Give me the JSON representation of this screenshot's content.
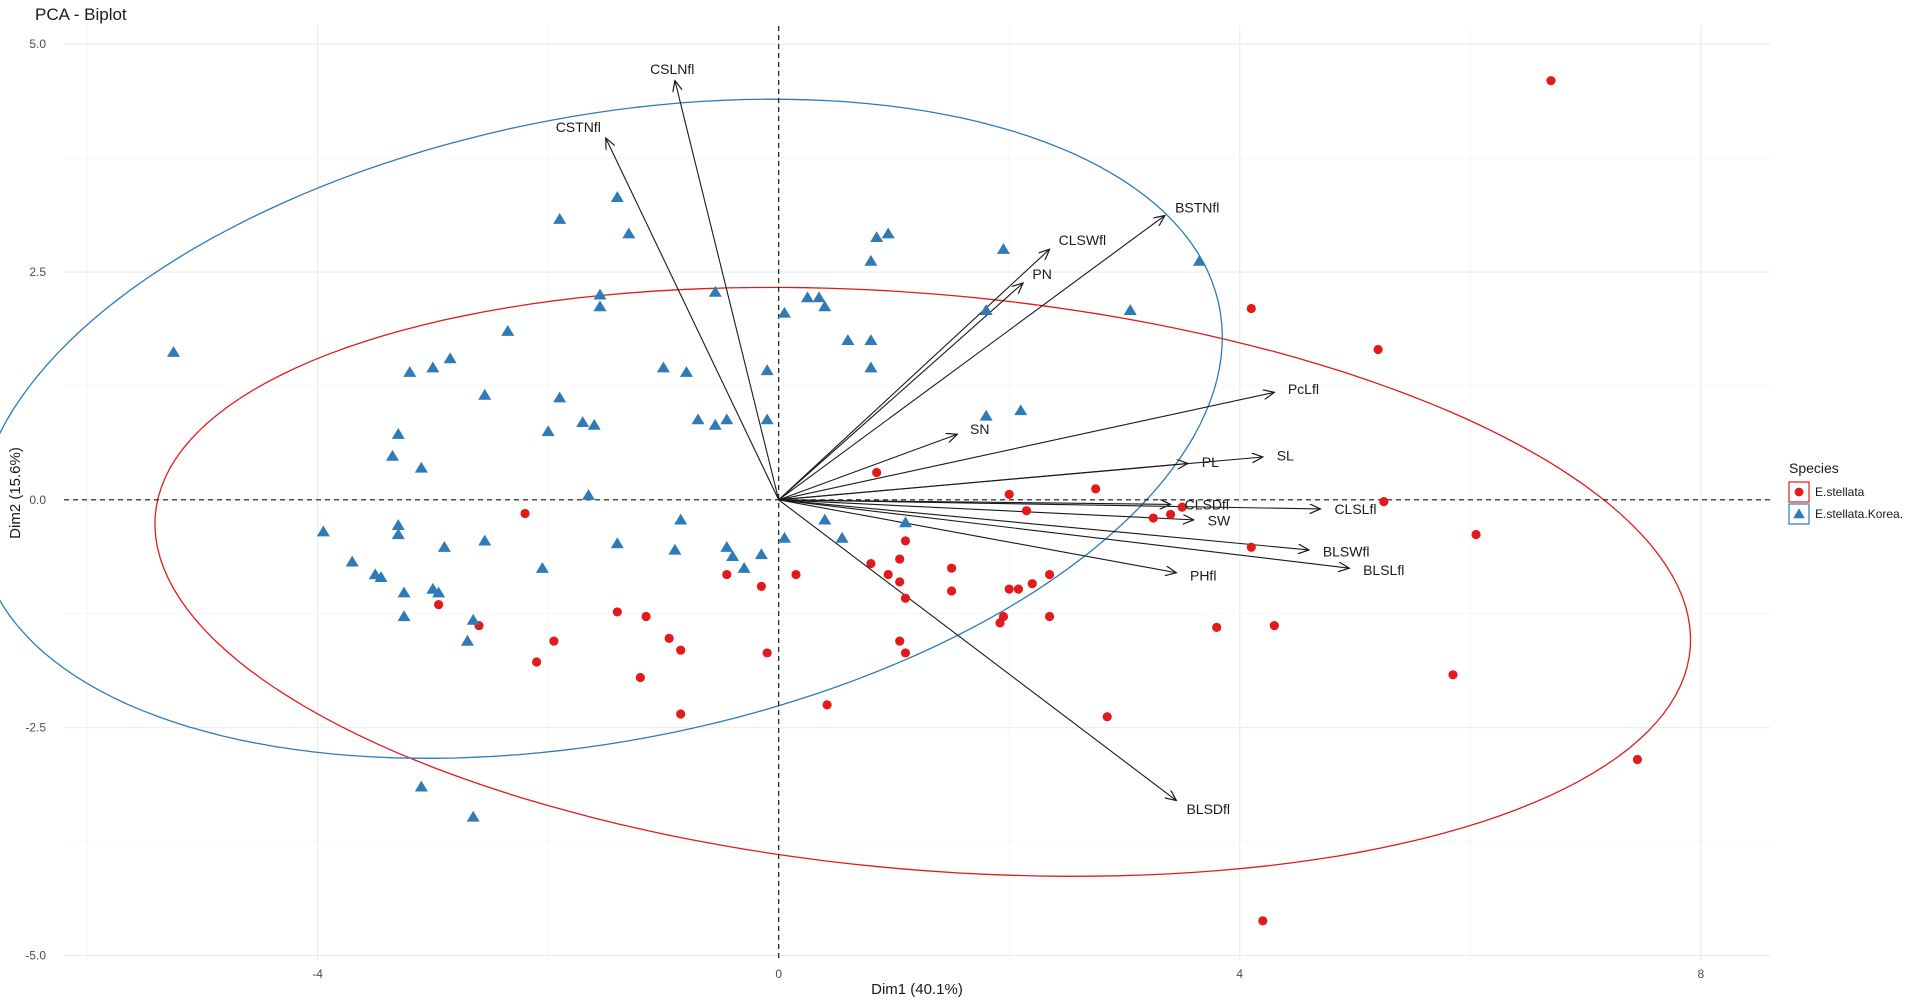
{
  "chart_data": {
    "type": "scatter",
    "title": "PCA - Biplot",
    "xlabel": "Dim1 (40.1%)",
    "ylabel": "Dim2 (15.6%)",
    "xlim": [
      -6.2,
      8.6
    ],
    "ylim": [
      -5.05,
      5.2
    ],
    "x_ticks": [
      -4,
      0,
      4,
      8
    ],
    "x_tick_labels": [
      "-4",
      "0",
      "4",
      "8"
    ],
    "y_ticks": [
      -5.0,
      -2.5,
      0.0,
      2.5,
      5.0
    ],
    "y_tick_labels": [
      "-5.0",
      "-2.5",
      "0.0",
      "2.5",
      "5.0"
    ],
    "grid": true,
    "legend": {
      "title": "Species",
      "position": "right",
      "entries": [
        {
          "label": "E.stellata",
          "color": "#e31a1c",
          "shape": "circle"
        },
        {
          "label": "E.stellata.Korea.",
          "color": "#2e7bb8",
          "shape": "triangle"
        }
      ]
    },
    "series": [
      {
        "name": "E.stellata",
        "color": "#e31a1c",
        "shape": "circle",
        "ellipse": {
          "cx": 1.25,
          "cy": -0.9,
          "rx": 6.7,
          "ry": 3.15,
          "angle_deg": -7
        },
        "points": [
          [
            6.7,
            4.6
          ],
          [
            4.1,
            2.1
          ],
          [
            5.2,
            1.65
          ],
          [
            5.25,
            -0.02
          ],
          [
            6.05,
            -0.38
          ],
          [
            5.85,
            -1.92
          ],
          [
            7.45,
            -2.85
          ],
          [
            4.2,
            -4.62
          ],
          [
            0.85,
            0.3
          ],
          [
            2.0,
            0.06
          ],
          [
            2.15,
            -0.12
          ],
          [
            2.75,
            0.12
          ],
          [
            3.25,
            -0.2
          ],
          [
            3.4,
            -0.16
          ],
          [
            3.5,
            -0.08
          ],
          [
            4.1,
            -0.52
          ],
          [
            1.1,
            -0.45
          ],
          [
            1.05,
            -0.65
          ],
          [
            0.8,
            -0.7
          ],
          [
            0.95,
            -0.82
          ],
          [
            1.05,
            -0.9
          ],
          [
            1.1,
            -1.08
          ],
          [
            1.5,
            -0.75
          ],
          [
            1.5,
            -1.0
          ],
          [
            2.0,
            -0.98
          ],
          [
            2.08,
            -0.98
          ],
          [
            2.2,
            -0.92
          ],
          [
            2.35,
            -0.82
          ],
          [
            1.95,
            -1.28
          ],
          [
            1.92,
            -1.35
          ],
          [
            2.35,
            -1.28
          ],
          [
            0.15,
            -0.82
          ],
          [
            -0.15,
            -0.95
          ],
          [
            -0.45,
            -0.82
          ],
          [
            -0.1,
            -1.68
          ],
          [
            -0.95,
            -1.52
          ],
          [
            -0.85,
            -1.65
          ],
          [
            -1.15,
            -1.28
          ],
          [
            -1.4,
            -1.23
          ],
          [
            -1.2,
            -1.95
          ],
          [
            -0.85,
            -2.35
          ],
          [
            0.42,
            -2.25
          ],
          [
            1.05,
            -1.55
          ],
          [
            1.1,
            -1.68
          ],
          [
            2.85,
            -2.38
          ],
          [
            3.8,
            -1.4
          ],
          [
            4.3,
            -1.38
          ],
          [
            -2.2,
            -0.15
          ],
          [
            -2.95,
            -1.15
          ],
          [
            -2.6,
            -1.38
          ],
          [
            -1.95,
            -1.55
          ],
          [
            -2.1,
            -1.78
          ]
        ]
      },
      {
        "name": "E.stellata.Korea.",
        "color": "#2e7bb8",
        "shape": "triangle",
        "ellipse": {
          "cx": -1.55,
          "cy": 0.78,
          "rx": 5.55,
          "ry": 3.38,
          "angle_deg": 17
        },
        "points": [
          [
            -5.25,
            1.62
          ],
          [
            -1.9,
            3.08
          ],
          [
            -1.4,
            3.32
          ],
          [
            -1.3,
            2.92
          ],
          [
            -1.55,
            2.12
          ],
          [
            -1.55,
            2.25
          ],
          [
            -2.35,
            1.85
          ],
          [
            -2.55,
            1.15
          ],
          [
            -2.85,
            1.55
          ],
          [
            -3.0,
            1.45
          ],
          [
            -3.2,
            1.4
          ],
          [
            -3.3,
            0.72
          ],
          [
            -3.35,
            0.48
          ],
          [
            -3.1,
            0.35
          ],
          [
            -1.9,
            1.12
          ],
          [
            -2.0,
            0.75
          ],
          [
            -1.7,
            0.85
          ],
          [
            -1.6,
            0.82
          ],
          [
            -1.65,
            0.05
          ],
          [
            -1.0,
            1.45
          ],
          [
            -0.8,
            1.4
          ],
          [
            -0.55,
            2.28
          ],
          [
            -0.7,
            0.88
          ],
          [
            -0.55,
            0.82
          ],
          [
            -0.45,
            0.88
          ],
          [
            -0.1,
            1.42
          ],
          [
            -0.1,
            0.88
          ],
          [
            0.05,
            2.05
          ],
          [
            0.25,
            2.22
          ],
          [
            0.35,
            2.22
          ],
          [
            0.4,
            2.12
          ],
          [
            0.6,
            1.75
          ],
          [
            0.8,
            1.75
          ],
          [
            0.8,
            1.45
          ],
          [
            0.8,
            2.62
          ],
          [
            0.85,
            2.88
          ],
          [
            0.95,
            2.92
          ],
          [
            1.8,
            2.08
          ],
          [
            1.95,
            2.75
          ],
          [
            3.05,
            2.08
          ],
          [
            3.65,
            2.62
          ],
          [
            1.8,
            0.92
          ],
          [
            2.1,
            0.98
          ],
          [
            -3.95,
            -0.35
          ],
          [
            -3.7,
            -0.68
          ],
          [
            -3.5,
            -0.82
          ],
          [
            -3.45,
            -0.85
          ],
          [
            -3.3,
            -0.28
          ],
          [
            -3.3,
            -0.38
          ],
          [
            -3.25,
            -1.02
          ],
          [
            -3.25,
            -1.28
          ],
          [
            -3.0,
            -0.98
          ],
          [
            -2.95,
            -1.02
          ],
          [
            -2.9,
            -0.52
          ],
          [
            -2.7,
            -1.55
          ],
          [
            -2.65,
            -1.32
          ],
          [
            -2.55,
            -0.45
          ],
          [
            -2.05,
            -0.75
          ],
          [
            -1.4,
            -0.48
          ],
          [
            -0.9,
            -0.55
          ],
          [
            -0.85,
            -0.22
          ],
          [
            -0.45,
            -0.52
          ],
          [
            -0.4,
            -0.62
          ],
          [
            -0.3,
            -0.75
          ],
          [
            -0.15,
            -0.6
          ],
          [
            0.05,
            -0.42
          ],
          [
            0.4,
            -0.22
          ],
          [
            0.55,
            -0.42
          ],
          [
            1.1,
            -0.25
          ],
          [
            -3.1,
            -3.15
          ],
          [
            -2.65,
            -3.48
          ]
        ]
      }
    ],
    "variables": [
      {
        "name": "CSLNfl",
        "x": -0.9,
        "y": 4.6
      },
      {
        "name": "CSTNfl",
        "x": -1.5,
        "y": 3.97
      },
      {
        "name": "BSTNfl",
        "x": 3.35,
        "y": 3.12
      },
      {
        "name": "CLSWfl",
        "x": 2.35,
        "y": 2.75
      },
      {
        "name": "PN",
        "x": 2.12,
        "y": 2.38
      },
      {
        "name": "SN",
        "x": 1.55,
        "y": 0.72
      },
      {
        "name": "PcLfl",
        "x": 4.3,
        "y": 1.18
      },
      {
        "name": "SL",
        "x": 4.2,
        "y": 0.47
      },
      {
        "name": "PL",
        "x": 3.55,
        "y": 0.4
      },
      {
        "name": "CLSDfl",
        "x": 3.4,
        "y": -0.05
      },
      {
        "name": "SW",
        "x": 3.6,
        "y": -0.22
      },
      {
        "name": "CLSLfl",
        "x": 4.7,
        "y": -0.1
      },
      {
        "name": "BLSWfl",
        "x": 4.6,
        "y": -0.55
      },
      {
        "name": "BLSLfl",
        "x": 4.95,
        "y": -0.75
      },
      {
        "name": "PHfl",
        "x": 3.45,
        "y": -0.8
      },
      {
        "name": "BLSDfl",
        "x": 3.45,
        "y": -3.3
      }
    ]
  }
}
